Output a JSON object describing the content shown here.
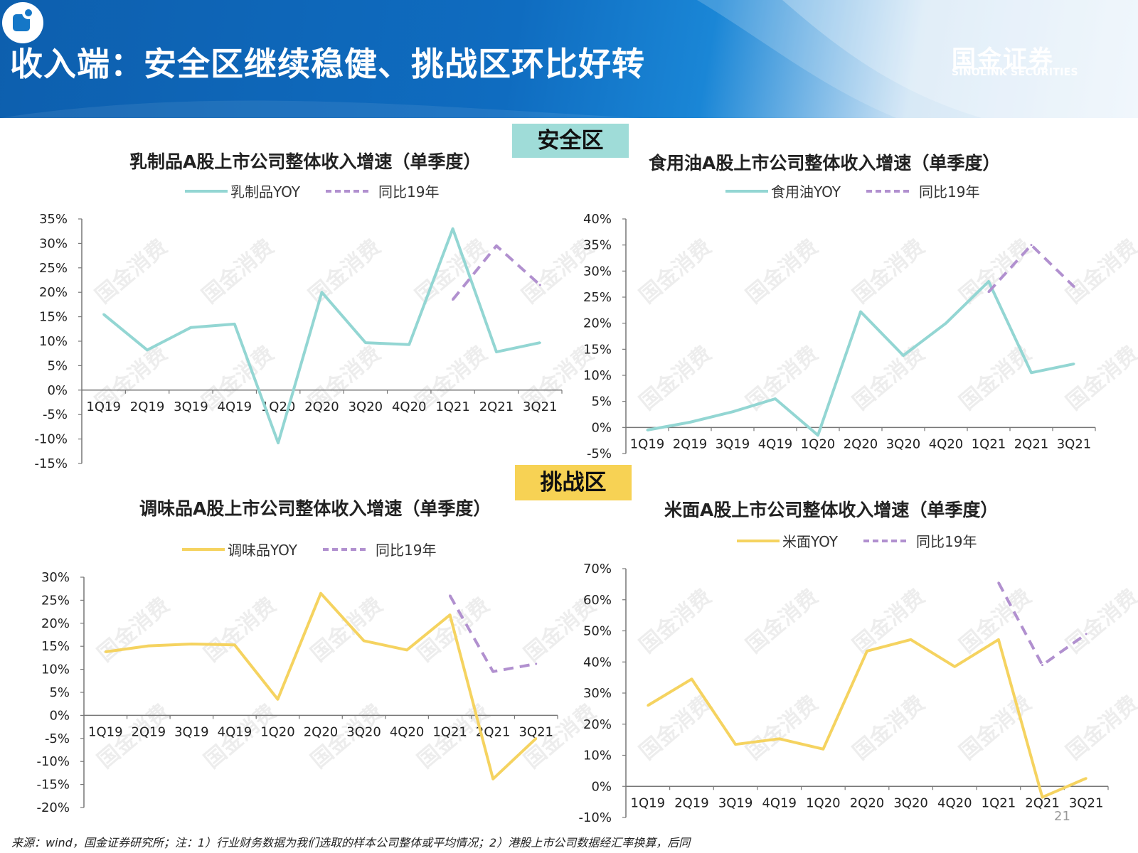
{
  "header": {
    "title": "收入端：安全区继续稳健、挑战区环比好转",
    "brand_cn": "国金证券",
    "brand_en": "SINOLINK SECURITIES"
  },
  "zones": {
    "safe": "安全区",
    "challenge": "挑战区"
  },
  "watermark": "国金消费",
  "colors": {
    "teal": "#93d6d3",
    "gold": "#f5d360",
    "purple": "#b190cf",
    "axis": "#777777"
  },
  "chart_data": [
    {
      "type": "line",
      "title": "乳制品A股上市公司整体收入增速（单季度）",
      "categories": [
        "1Q19",
        "2Q19",
        "3Q19",
        "4Q19",
        "1Q20",
        "2Q20",
        "3Q20",
        "4Q20",
        "1Q21",
        "2Q21",
        "3Q21"
      ],
      "ylim": [
        -15,
        35
      ],
      "ystep": 5,
      "series": [
        {
          "name": "乳制品YOY",
          "style": "solid",
          "color": "#93d6d3",
          "values": [
            15.5,
            8.2,
            12.8,
            13.5,
            -10.8,
            20.0,
            9.7,
            9.3,
            33.0,
            7.8,
            9.7
          ]
        },
        {
          "name": "同比19年",
          "style": "dashed",
          "color": "#b190cf",
          "values": [
            null,
            null,
            null,
            null,
            null,
            null,
            null,
            null,
            18.5,
            29.5,
            21.5
          ]
        }
      ]
    },
    {
      "type": "line",
      "title": "食用油A股上市公司整体收入增速（单季度）",
      "categories": [
        "1Q19",
        "2Q19",
        "3Q19",
        "4Q19",
        "1Q20",
        "2Q20",
        "3Q20",
        "4Q20",
        "1Q21",
        "2Q21",
        "3Q21"
      ],
      "ylim": [
        -5,
        40
      ],
      "ystep": 5,
      "series": [
        {
          "name": "食用油YOY",
          "style": "solid",
          "color": "#93d6d3",
          "values": [
            -0.5,
            1.0,
            3.0,
            5.5,
            -1.5,
            22.2,
            13.8,
            20.0,
            28.0,
            10.5,
            12.2
          ]
        },
        {
          "name": "同比19年",
          "style": "dashed",
          "color": "#b190cf",
          "values": [
            null,
            null,
            null,
            null,
            null,
            null,
            null,
            null,
            26.0,
            35.0,
            27.0
          ]
        }
      ]
    },
    {
      "type": "line",
      "title": "调味品A股上市公司整体收入增速（单季度）",
      "categories": [
        "1Q19",
        "2Q19",
        "3Q19",
        "4Q19",
        "1Q20",
        "2Q20",
        "3Q20",
        "4Q20",
        "1Q21",
        "2Q21",
        "3Q21"
      ],
      "ylim": [
        -20,
        30
      ],
      "ystep": 5,
      "series": [
        {
          "name": "调味品YOY",
          "style": "solid",
          "color": "#f5d360",
          "values": [
            13.8,
            15.1,
            15.5,
            15.3,
            3.5,
            26.5,
            16.2,
            14.2,
            21.8,
            -13.8,
            -5.0
          ]
        },
        {
          "name": "同比19年",
          "style": "dashed",
          "color": "#b190cf",
          "values": [
            null,
            null,
            null,
            null,
            null,
            null,
            null,
            null,
            26.0,
            9.5,
            11.2
          ]
        }
      ]
    },
    {
      "type": "line",
      "title": "米面A股上市公司整体收入增速（单季度）",
      "categories": [
        "1Q19",
        "2Q19",
        "3Q19",
        "4Q19",
        "1Q20",
        "2Q20",
        "3Q20",
        "4Q20",
        "1Q21",
        "2Q21",
        "3Q21"
      ],
      "ylim": [
        -10,
        70
      ],
      "ystep": 10,
      "series": [
        {
          "name": "米面YOY",
          "style": "solid",
          "color": "#f5d360",
          "values": [
            26.0,
            34.5,
            13.5,
            15.3,
            12.0,
            43.5,
            47.2,
            38.5,
            47.2,
            -3.5,
            2.6
          ]
        },
        {
          "name": "同比19年",
          "style": "dashed",
          "color": "#b190cf",
          "values": [
            null,
            null,
            null,
            null,
            null,
            null,
            null,
            null,
            65.5,
            39.0,
            49.0
          ]
        }
      ]
    }
  ],
  "footer": "来源：wind，国金证券研究所；注：1）行业财务数据为我们选取的样本公司整体或平均情况；2）港股上市公司数据经汇率换算，后同",
  "page_number": "21"
}
